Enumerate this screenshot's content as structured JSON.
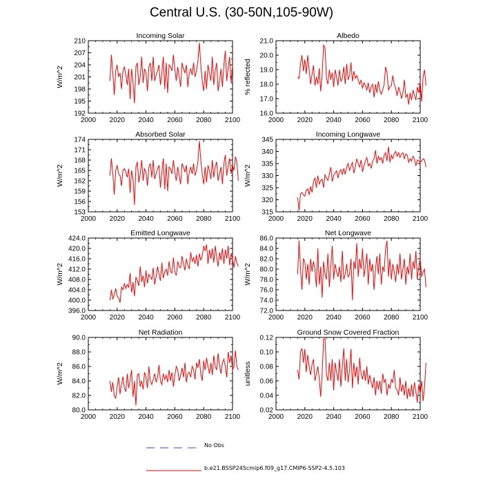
{
  "page": {
    "title": "Central U.S. (30-50N,105-90W)",
    "legend": [
      {
        "label": "No Obs",
        "color": "#4b3ad0",
        "style": "dashed"
      },
      {
        "label": "b.e21.BSSP245cmip6.f09_g17.CMIP6-SSP2-4.5.103",
        "color": "#ff0000",
        "style": "solid"
      }
    ]
  },
  "chart_data": [
    {
      "type": "line",
      "title": "Incoming Solar",
      "ylabel": "W/m^2",
      "xlabel": "",
      "xlim": [
        2000,
        2100
      ],
      "xticks": [
        "2000",
        "2020",
        "2040",
        "2060",
        "2080",
        "2100"
      ],
      "ylim": [
        192,
        210
      ],
      "yticks": [
        "192",
        "195",
        "198",
        "201",
        "204",
        "207",
        "210"
      ],
      "series": [
        {
          "name": "b.e21.BSSP245cmip6.f09_g17.CMIP6-SSP2-4.5.103",
          "color": "#ff0000",
          "x_start": 2015,
          "values": [
            200.0,
            206.5,
            202.0,
            196.5,
            202.5,
            204.0,
            201.0,
            202.0,
            198.0,
            202.5,
            203.5,
            201.5,
            199.0,
            203.0,
            195.5,
            203.0,
            199.5,
            194.5,
            203.5,
            204.5,
            199.0,
            201.0,
            206.0,
            199.5,
            203.0,
            202.0,
            197.5,
            203.5,
            204.5,
            200.0,
            206.0,
            200.0,
            201.5,
            202.5,
            204.0,
            199.0,
            202.0,
            206.0,
            198.0,
            204.5,
            197.0,
            204.0,
            203.5,
            202.5,
            206.5,
            203.0,
            200.0,
            203.5,
            201.0,
            198.5,
            204.5,
            203.0,
            202.0,
            204.0,
            198.5,
            202.0,
            203.0,
            201.5,
            204.5,
            201.0,
            202.5,
            205.0,
            209.5,
            204.0,
            200.0,
            197.5,
            202.5,
            198.0,
            204.0,
            202.0,
            200.0,
            206.0,
            199.0,
            202.5,
            204.5,
            197.5,
            200.0,
            203.0,
            198.5,
            204.0,
            207.5,
            200.0,
            203.5,
            206.0,
            199.5,
            204.0
          ]
        }
      ]
    },
    {
      "type": "line",
      "title": "Albedo",
      "ylabel": "% reflected",
      "xlabel": "",
      "xlim": [
        2000,
        2100
      ],
      "xticks": [
        "2000",
        "2020",
        "2040",
        "2060",
        "2080",
        "2100"
      ],
      "ylim": [
        16.0,
        21.0
      ],
      "yticks": [
        "16.0",
        "17.0",
        "18.0",
        "19.0",
        "20.0",
        "21.0"
      ],
      "series": [
        {
          "name": "b.e21.BSSP245cmip6.f09_g17.CMIP6-SSP2-4.5.103",
          "color": "#ff0000",
          "x_start": 2015,
          "values": [
            18.5,
            18.4,
            19.4,
            20.0,
            18.9,
            19.7,
            18.7,
            20.0,
            19.0,
            18.0,
            18.7,
            19.3,
            17.9,
            18.5,
            18.0,
            19.1,
            17.5,
            18.7,
            20.7,
            20.5,
            18.4,
            18.0,
            19.0,
            18.3,
            18.8,
            17.8,
            19.0,
            18.5,
            17.9,
            19.0,
            18.2,
            18.4,
            19.2,
            18.0,
            19.4,
            18.3,
            18.6,
            19.5,
            18.2,
            18.9,
            18.4,
            18.6,
            18.3,
            18.0,
            18.3,
            17.7,
            18.1,
            17.9,
            17.6,
            18.1,
            17.4,
            17.8,
            18.0,
            17.1,
            18.0,
            17.4,
            18.2,
            17.6,
            17.3,
            17.6,
            18.0,
            19.2,
            18.8,
            17.6,
            17.8,
            17.9,
            18.6,
            18.0,
            17.7,
            17.2,
            17.8,
            17.5,
            17.0,
            17.4,
            18.3,
            17.1,
            17.3,
            16.6,
            17.4,
            16.9,
            17.6,
            17.2,
            16.9,
            17.8,
            17.4,
            18.2,
            16.8,
            18.5,
            19.0,
            17.9
          ]
        }
      ]
    },
    {
      "type": "line",
      "title": "Absorbed Solar",
      "ylabel": "W/m^2",
      "xlabel": "",
      "xlim": [
        2000,
        2100
      ],
      "xticks": [
        "2000",
        "2020",
        "2040",
        "2060",
        "2080",
        "2100"
      ],
      "ylim": [
        153,
        174
      ],
      "yticks": [
        "153",
        "156",
        "159",
        "162",
        "165",
        "168",
        "171",
        "174"
      ],
      "series": [
        {
          "name": "b.e21.BSSP245cmip6.f09_g17.CMIP6-SSP2-4.5.103",
          "color": "#ff0000",
          "x_start": 2015,
          "values": [
            163.5,
            168.5,
            164.0,
            158.0,
            165.0,
            166.5,
            164.0,
            163.5,
            160.5,
            165.0,
            165.5,
            164.5,
            163.0,
            165.5,
            158.5,
            165.0,
            162.5,
            155.0,
            166.0,
            167.5,
            161.5,
            164.0,
            168.0,
            162.0,
            165.5,
            164.5,
            160.5,
            166.0,
            167.0,
            163.0,
            168.0,
            162.5,
            164.0,
            165.5,
            166.5,
            160.0,
            164.5,
            168.5,
            159.5,
            167.0,
            159.0,
            166.0,
            165.5,
            164.0,
            168.0,
            164.5,
            162.0,
            166.0,
            163.5,
            161.0,
            167.0,
            166.0,
            164.5,
            166.5,
            161.0,
            164.5,
            166.0,
            164.0,
            167.0,
            163.5,
            165.0,
            167.5,
            173.5,
            168.0,
            164.0,
            161.0,
            166.0,
            161.5,
            166.5,
            165.0,
            162.5,
            168.0,
            163.0,
            166.0,
            167.5,
            162.0,
            164.0,
            166.0,
            161.0,
            167.0,
            169.5,
            163.5,
            166.5,
            168.5,
            164.0,
            166.5,
            165.0,
            169.0,
            167.5,
            162.0
          ]
        }
      ]
    },
    {
      "type": "line",
      "title": "Incoming Longwave",
      "ylabel": "W/m^2",
      "xlabel": "",
      "xlim": [
        2000,
        2100
      ],
      "xticks": [
        "2000",
        "2020",
        "2040",
        "2060",
        "2080",
        "2100"
      ],
      "ylim": [
        315,
        345
      ],
      "yticks": [
        "315",
        "320",
        "325",
        "330",
        "335",
        "340",
        "345"
      ],
      "series": [
        {
          "name": "b.e21.BSSP245cmip6.f09_g17.CMIP6-SSP2-4.5.103",
          "color": "#ff0000",
          "x_start": 2015,
          "values": [
            321.0,
            315.5,
            322.5,
            323.0,
            322.0,
            321.5,
            324.0,
            324.5,
            322.0,
            325.5,
            323.0,
            327.5,
            329.0,
            325.0,
            330.0,
            326.5,
            328.0,
            328.5,
            325.0,
            330.5,
            329.0,
            328.0,
            330.5,
            333.5,
            327.5,
            330.0,
            331.0,
            332.0,
            329.0,
            331.5,
            332.5,
            330.5,
            333.0,
            330.5,
            333.5,
            335.0,
            332.0,
            334.0,
            335.5,
            331.0,
            333.5,
            337.0,
            335.0,
            333.5,
            336.5,
            331.5,
            334.0,
            336.0,
            337.5,
            334.0,
            335.0,
            333.0,
            336.0,
            337.0,
            340.5,
            335.0,
            338.0,
            336.5,
            337.5,
            335.0,
            338.5,
            339.5,
            336.0,
            342.0,
            335.5,
            338.5,
            337.0,
            339.0,
            340.0,
            338.0,
            339.5,
            337.5,
            339.0,
            339.5,
            337.0,
            339.0,
            338.5,
            335.5,
            337.0,
            336.0,
            338.0,
            337.0,
            334.0,
            336.5,
            336.0,
            335.5,
            336.0,
            337.0,
            336.5,
            333.5
          ]
        }
      ]
    },
    {
      "type": "line",
      "title": "Emitted Longwave",
      "ylabel": "W/m^2",
      "xlabel": "",
      "xlim": [
        2000,
        2100
      ],
      "xticks": [
        "2000",
        "2020",
        "2040",
        "2060",
        "2080",
        "2100"
      ],
      "ylim": [
        396.0,
        424.0
      ],
      "yticks": [
        "396.0",
        "400.0",
        "404.0",
        "408.0",
        "412.0",
        "416.0",
        "420.0",
        "424.0"
      ],
      "series": [
        {
          "name": "b.e21.BSSP245cmip6.f09_g17.CMIP6-SSP2-4.5.103",
          "color": "#ff0000",
          "x_start": 2015,
          "values": [
            400.0,
            404.0,
            400.5,
            402.0,
            404.5,
            401.5,
            401.0,
            399.0,
            405.0,
            404.0,
            406.5,
            404.5,
            406.0,
            405.0,
            410.5,
            403.0,
            407.0,
            401.5,
            409.0,
            407.5,
            405.5,
            413.0,
            407.0,
            409.5,
            405.0,
            411.5,
            406.5,
            410.0,
            409.0,
            408.0,
            412.5,
            406.0,
            409.0,
            413.0,
            410.0,
            407.5,
            414.5,
            408.5,
            411.0,
            412.0,
            409.5,
            415.0,
            411.0,
            410.5,
            416.5,
            411.0,
            409.5,
            415.0,
            413.0,
            412.5,
            417.0,
            414.0,
            411.5,
            416.0,
            413.5,
            412.0,
            418.5,
            415.0,
            416.5,
            414.0,
            417.5,
            413.0,
            418.0,
            415.5,
            417.0,
            421.0,
            419.0,
            421.5,
            414.0,
            419.5,
            416.0,
            420.0,
            414.5,
            421.0,
            416.5,
            413.0,
            418.5,
            415.5,
            420.0,
            414.0,
            419.5,
            416.0,
            421.0,
            413.5,
            418.0,
            416.0,
            412.5,
            417.0,
            414.5,
            413.0
          ]
        }
      ]
    },
    {
      "type": "line",
      "title": "Net Longwave",
      "ylabel": "W/m^2",
      "xlabel": "",
      "xlim": [
        2000,
        2100
      ],
      "xticks": [
        "2000",
        "2020",
        "2040",
        "2060",
        "2080",
        "2100"
      ],
      "ylim": [
        72.0,
        86.0
      ],
      "yticks": [
        "72.0",
        "74.0",
        "76.0",
        "78.0",
        "80.0",
        "82.0",
        "84.0",
        "86.0"
      ],
      "series": [
        {
          "name": "b.e21.BSSP245cmip6.f09_g17.CMIP6-SSP2-4.5.103",
          "color": "#ff0000",
          "x_start": 2015,
          "values": [
            79.0,
            85.5,
            80.0,
            76.0,
            82.0,
            81.5,
            78.0,
            81.0,
            77.0,
            82.0,
            79.5,
            81.5,
            80.0,
            76.5,
            84.0,
            77.0,
            80.5,
            74.5,
            81.5,
            79.0,
            78.0,
            83.0,
            76.5,
            80.5,
            84.5,
            78.0,
            81.0,
            79.5,
            78.5,
            80.5,
            77.5,
            83.5,
            78.0,
            79.0,
            81.0,
            78.5,
            79.0,
            82.0,
            74.0,
            81.5,
            80.0,
            85.0,
            78.5,
            82.0,
            80.0,
            84.0,
            78.5,
            80.5,
            83.0,
            77.0,
            82.0,
            79.5,
            81.0,
            76.0,
            80.0,
            82.5,
            79.0,
            83.0,
            77.0,
            80.5,
            79.5,
            84.0,
            85.5,
            78.5,
            82.0,
            78.0,
            81.0,
            79.5,
            77.5,
            81.0,
            79.0,
            83.0,
            78.0,
            80.0,
            82.0,
            77.0,
            80.5,
            79.0,
            83.0,
            78.0,
            81.5,
            80.0,
            83.5,
            78.0,
            80.5,
            82.0,
            78.5,
            79.5,
            80.0,
            76.5
          ]
        }
      ]
    },
    {
      "type": "line",
      "title": "Net Radiation",
      "ylabel": "W/m^2",
      "xlabel": "",
      "xlim": [
        2000,
        2100
      ],
      "xticks": [
        "2000",
        "2020",
        "2040",
        "2060",
        "2080",
        "2100"
      ],
      "ylim": [
        80.0,
        90.0
      ],
      "yticks": [
        "80.0",
        "82.0",
        "84.0",
        "86.0",
        "88.0",
        "90.0"
      ],
      "series": [
        {
          "name": "b.e21.BSSP245cmip6.f09_g17.CMIP6-SSP2-4.5.103",
          "color": "#ff0000",
          "x_start": 2015,
          "values": [
            84.0,
            82.5,
            83.8,
            82.0,
            81.6,
            83.2,
            84.5,
            82.2,
            83.5,
            84.6,
            83.0,
            82.5,
            85.0,
            83.0,
            84.2,
            85.5,
            81.8,
            84.0,
            80.6,
            84.8,
            85.0,
            83.2,
            84.0,
            82.8,
            85.2,
            84.5,
            83.0,
            86.0,
            84.0,
            83.5,
            84.2,
            85.0,
            83.8,
            84.5,
            86.2,
            84.0,
            83.5,
            85.0,
            84.2,
            84.8,
            83.8,
            85.5,
            84.0,
            85.2,
            83.2,
            84.8,
            86.0,
            85.5,
            84.0,
            84.8,
            85.8,
            84.5,
            86.5,
            83.8,
            85.0,
            85.2,
            84.5,
            86.0,
            85.5,
            84.2,
            86.5,
            85.8,
            87.0,
            85.0,
            84.0,
            86.8,
            85.5,
            87.2,
            86.0,
            85.0,
            86.5,
            84.8,
            87.5,
            86.0,
            85.5,
            87.8,
            86.2,
            85.0,
            86.5,
            87.0,
            86.0,
            84.5,
            88.0,
            86.5,
            87.5,
            85.5,
            86.0,
            88.2,
            86.0,
            85.5
          ]
        }
      ]
    },
    {
      "type": "line",
      "title": "Ground Snow Covered Fraction",
      "ylabel": "unitless",
      "xlabel": "",
      "xlim": [
        2000,
        2100
      ],
      "xticks": [
        "2000",
        "2020",
        "2040",
        "2060",
        "2080",
        "2100"
      ],
      "ylim": [
        0.02,
        0.12
      ],
      "yticks": [
        "0.02",
        "0.04",
        "0.06",
        "0.08",
        "0.10",
        "0.12"
      ],
      "series": [
        {
          "name": "b.e21.BSSP245cmip6.f09_g17.CMIP6-SSP2-4.5.103",
          "color": "#ff0000",
          "x_start": 2015,
          "values": [
            0.075,
            0.062,
            0.1,
            0.105,
            0.085,
            0.104,
            0.072,
            0.096,
            0.08,
            0.068,
            0.083,
            0.09,
            0.06,
            0.07,
            0.08,
            0.063,
            0.038,
            0.07,
            0.118,
            0.118,
            0.068,
            0.06,
            0.085,
            0.06,
            0.09,
            0.047,
            0.085,
            0.072,
            0.06,
            0.09,
            0.052,
            0.08,
            0.105,
            0.06,
            0.09,
            0.058,
            0.075,
            0.104,
            0.05,
            0.085,
            0.065,
            0.08,
            0.055,
            0.092,
            0.07,
            0.062,
            0.075,
            0.06,
            0.08,
            0.055,
            0.068,
            0.058,
            0.05,
            0.065,
            0.04,
            0.06,
            0.048,
            0.06,
            0.042,
            0.07,
            0.058,
            0.062,
            0.04,
            0.055,
            0.05,
            0.062,
            0.058,
            0.075,
            0.05,
            0.048,
            0.04,
            0.065,
            0.045,
            0.055,
            0.04,
            0.06,
            0.035,
            0.05,
            0.038,
            0.055,
            0.038,
            0.058,
            0.045,
            0.03,
            0.055,
            0.042,
            0.06,
            0.032,
            0.052,
            0.085
          ]
        }
      ]
    }
  ]
}
